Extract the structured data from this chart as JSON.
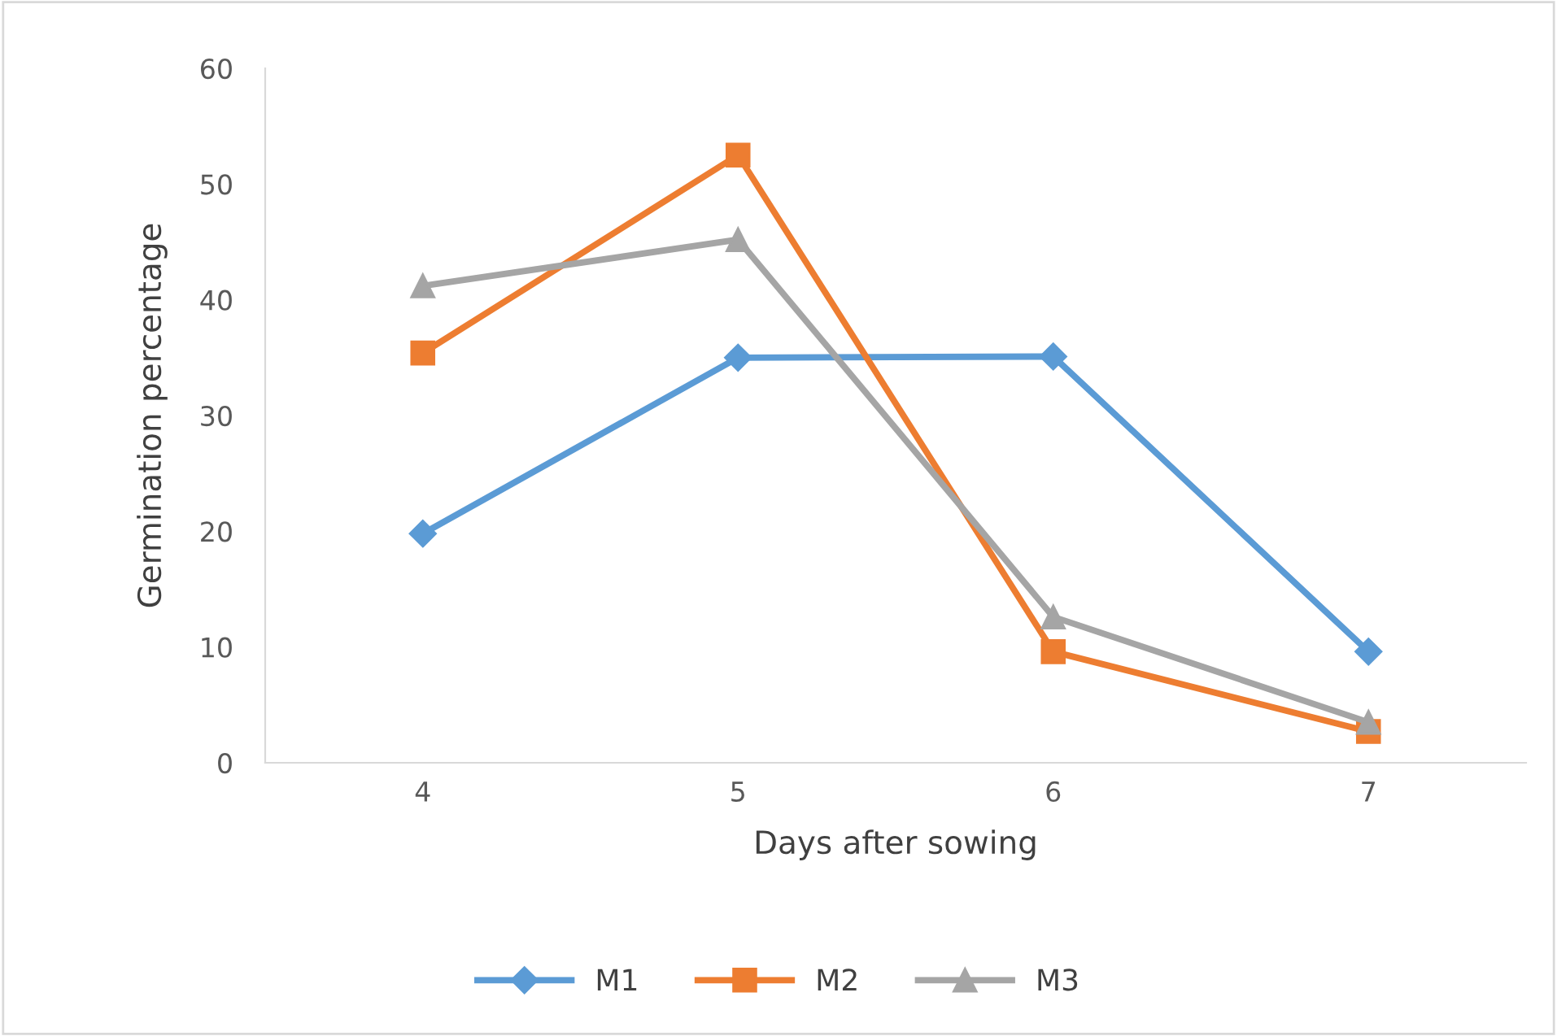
{
  "chart_data": {
    "type": "line",
    "xlabel": "Days after sowing",
    "ylabel": "Germination percentage",
    "categories": [
      "4",
      "5",
      "6",
      "7"
    ],
    "series": [
      {
        "name": "M1",
        "color": "#5b9bd5",
        "marker": "diamond",
        "values": [
          19.8,
          35.0,
          35.1,
          9.6
        ]
      },
      {
        "name": "M2",
        "color": "#ed7d31",
        "marker": "square",
        "values": [
          35.4,
          52.5,
          9.6,
          2.7
        ]
      },
      {
        "name": "M3",
        "color": "#a5a5a5",
        "marker": "triangle",
        "values": [
          41.2,
          45.2,
          12.6,
          3.5
        ]
      }
    ],
    "ylim": [
      0,
      60
    ],
    "yticks": [
      0,
      10,
      20,
      30,
      40,
      50,
      60
    ],
    "grid": false,
    "legend": "bottom",
    "line_style": "solid"
  }
}
